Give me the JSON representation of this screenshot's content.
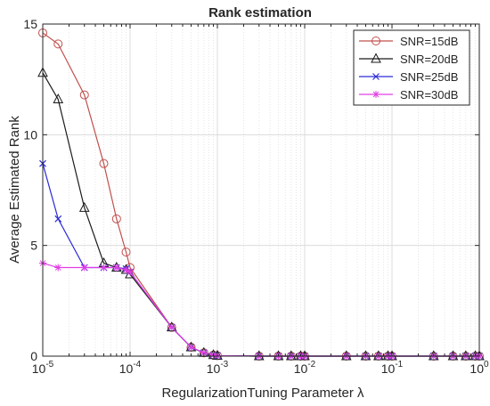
{
  "chart_data": {
    "type": "line",
    "title": "Rank estimation",
    "xlabel": "RegularizationTuning Parameter  λ",
    "ylabel": "Average Estimated Rank",
    "xscale": "log",
    "xlim": [
      1e-05,
      1
    ],
    "ylim": [
      0,
      15
    ],
    "grid": true,
    "legend_position": "top-right",
    "x_tick_labels": [
      {
        "base": "10",
        "exp": "-5"
      },
      {
        "base": "10",
        "exp": "-4"
      },
      {
        "base": "10",
        "exp": "-3"
      },
      {
        "base": "10",
        "exp": "-2"
      },
      {
        "base": "10",
        "exp": "-1"
      },
      {
        "base": "10",
        "exp": "0"
      }
    ],
    "y_tick_labels": [
      "0",
      "5",
      "10",
      "15"
    ],
    "series": [
      {
        "name": "SNR=15dB",
        "color": "#c0504d",
        "marker": "circle",
        "points": [
          [
            1e-05,
            14.6
          ],
          [
            1.5e-05,
            14.1
          ],
          [
            3e-05,
            11.8
          ],
          [
            5e-05,
            8.7
          ],
          [
            7e-05,
            6.2
          ],
          [
            9e-05,
            4.7
          ],
          [
            0.0001,
            4.0
          ],
          [
            0.0003,
            1.3
          ],
          [
            0.0005,
            0.4
          ],
          [
            0.0007,
            0.15
          ],
          [
            0.0009,
            0.05
          ],
          [
            0.001,
            0.02
          ],
          [
            0.003,
            0
          ],
          [
            0.005,
            0
          ],
          [
            0.007,
            0
          ],
          [
            0.009,
            0
          ],
          [
            0.01,
            0
          ],
          [
            0.03,
            0
          ],
          [
            0.05,
            0
          ],
          [
            0.07,
            0
          ],
          [
            0.09,
            0
          ],
          [
            0.1,
            0
          ],
          [
            0.3,
            0
          ],
          [
            0.5,
            0
          ],
          [
            0.7,
            0
          ],
          [
            0.9,
            0
          ],
          [
            1,
            0
          ]
        ]
      },
      {
        "name": "SNR=20dB",
        "color": "#1a1a1a",
        "marker": "triangle",
        "points": [
          [
            1e-05,
            12.8
          ],
          [
            1.5e-05,
            11.6
          ],
          [
            3e-05,
            6.7
          ],
          [
            5e-05,
            4.2
          ],
          [
            7e-05,
            4.0
          ],
          [
            9e-05,
            3.9
          ],
          [
            0.0001,
            3.7
          ],
          [
            0.0003,
            1.3
          ],
          [
            0.0005,
            0.4
          ],
          [
            0.0007,
            0.15
          ],
          [
            0.0009,
            0.05
          ],
          [
            0.001,
            0.02
          ],
          [
            0.003,
            0
          ],
          [
            0.005,
            0
          ],
          [
            0.007,
            0
          ],
          [
            0.009,
            0
          ],
          [
            0.01,
            0
          ],
          [
            0.03,
            0
          ],
          [
            0.05,
            0
          ],
          [
            0.07,
            0
          ],
          [
            0.09,
            0
          ],
          [
            0.1,
            0
          ],
          [
            0.3,
            0
          ],
          [
            0.5,
            0
          ],
          [
            0.7,
            0
          ],
          [
            0.9,
            0
          ],
          [
            1,
            0
          ]
        ]
      },
      {
        "name": "SNR=25dB",
        "color": "#2b2bd6",
        "marker": "x",
        "points": [
          [
            1e-05,
            8.7
          ],
          [
            1.5e-05,
            6.2
          ],
          [
            3e-05,
            4.0
          ],
          [
            5e-05,
            4.0
          ],
          [
            7e-05,
            4.0
          ],
          [
            9e-05,
            3.95
          ],
          [
            0.0001,
            3.8
          ],
          [
            0.0003,
            1.3
          ],
          [
            0.0005,
            0.4
          ],
          [
            0.0007,
            0.15
          ],
          [
            0.0009,
            0.05
          ],
          [
            0.001,
            0.02
          ],
          [
            0.003,
            0
          ],
          [
            0.005,
            0
          ],
          [
            0.007,
            0
          ],
          [
            0.009,
            0
          ],
          [
            0.01,
            0
          ],
          [
            0.03,
            0
          ],
          [
            0.05,
            0
          ],
          [
            0.07,
            0
          ],
          [
            0.09,
            0
          ],
          [
            0.1,
            0
          ],
          [
            0.3,
            0
          ],
          [
            0.5,
            0
          ],
          [
            0.7,
            0
          ],
          [
            0.9,
            0
          ],
          [
            1,
            0
          ]
        ]
      },
      {
        "name": "SNR=30dB",
        "color": "#e23de6",
        "marker": "star",
        "points": [
          [
            1e-05,
            4.2
          ],
          [
            1.5e-05,
            4.0
          ],
          [
            3e-05,
            4.0
          ],
          [
            5e-05,
            4.0
          ],
          [
            7e-05,
            4.0
          ],
          [
            9e-05,
            3.9
          ],
          [
            0.0001,
            3.8
          ],
          [
            0.0003,
            1.3
          ],
          [
            0.0005,
            0.4
          ],
          [
            0.0007,
            0.15
          ],
          [
            0.0009,
            0.05
          ],
          [
            0.001,
            0.02
          ],
          [
            0.003,
            0
          ],
          [
            0.005,
            0
          ],
          [
            0.007,
            0
          ],
          [
            0.009,
            0
          ],
          [
            0.01,
            0
          ],
          [
            0.03,
            0
          ],
          [
            0.05,
            0
          ],
          [
            0.07,
            0
          ],
          [
            0.09,
            0
          ],
          [
            0.1,
            0
          ],
          [
            0.3,
            0
          ],
          [
            0.5,
            0
          ],
          [
            0.7,
            0
          ],
          [
            0.9,
            0
          ],
          [
            1,
            0
          ]
        ]
      }
    ]
  }
}
